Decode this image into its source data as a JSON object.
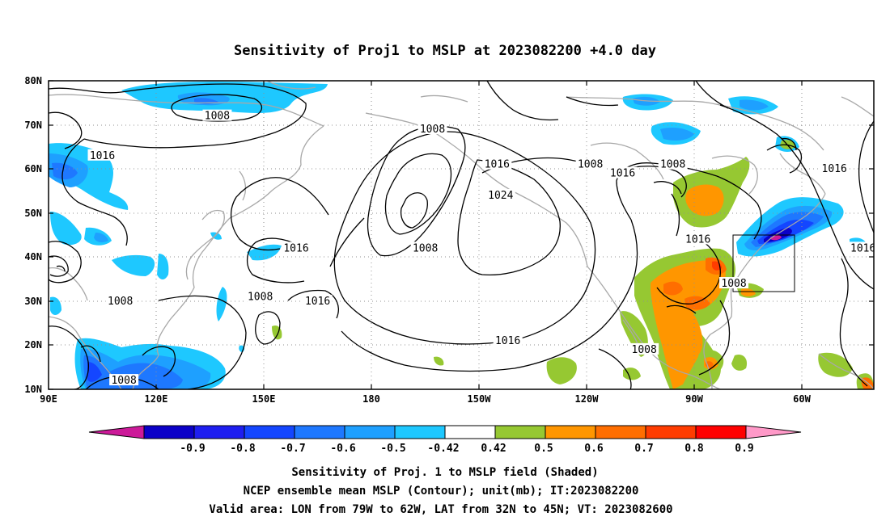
{
  "title": "Sensitivity of Proj1 to MSLP at 2023082200 +4.0 day",
  "map": {
    "lat_labels": [
      "80N",
      "70N",
      "60N",
      "50N",
      "40N",
      "30N",
      "20N",
      "10N"
    ],
    "lon_labels": [
      "90E",
      "120E",
      "150E",
      "180",
      "150W",
      "120W",
      "90W",
      "60W"
    ],
    "lon_range_deg": [
      90,
      320
    ],
    "lat_range_deg": [
      10,
      80
    ],
    "gridlines": "dotted",
    "coastlines_color": "#a8a8a8",
    "contour_color": "#000000",
    "contour_labels": [
      {
        "text": "1008",
        "lon": 137,
        "lat": 72
      },
      {
        "text": "1016",
        "lon": 105,
        "lat": 63
      },
      {
        "text": "1008",
        "lon": 197,
        "lat": 69
      },
      {
        "text": "1016",
        "lon": 215,
        "lat": 61
      },
      {
        "text": "1008",
        "lon": 241,
        "lat": 61
      },
      {
        "text": "1016",
        "lon": 250,
        "lat": 59
      },
      {
        "text": "1008",
        "lon": 264,
        "lat": 61
      },
      {
        "text": "1016",
        "lon": 309,
        "lat": 60
      },
      {
        "text": "1024",
        "lon": 216,
        "lat": 54
      },
      {
        "text": "1008",
        "lon": 195,
        "lat": 42
      },
      {
        "text": "1016",
        "lon": 159,
        "lat": 42
      },
      {
        "text": "1016",
        "lon": 271,
        "lat": 44
      },
      {
        "text": "1016",
        "lon": 317,
        "lat": 42
      },
      {
        "text": "1008",
        "lon": 281,
        "lat": 34
      },
      {
        "text": "1008",
        "lon": 110,
        "lat": 30
      },
      {
        "text": "1008",
        "lon": 149,
        "lat": 31
      },
      {
        "text": "1016",
        "lon": 165,
        "lat": 30
      },
      {
        "text": "1016",
        "lon": 218,
        "lat": 21
      },
      {
        "text": "1008",
        "lon": 256,
        "lat": 19
      },
      {
        "text": "1008",
        "lon": 111,
        "lat": 12
      }
    ],
    "valid_box": {
      "lon": [
        281,
        298
      ],
      "lat": [
        32,
        45
      ]
    }
  },
  "colorbar": {
    "labels": [
      "-0.9",
      "-0.8",
      "-0.7",
      "-0.6",
      "-0.5",
      "-0.42",
      "0.42",
      "0.5",
      "0.6",
      "0.7",
      "0.8",
      "0.9"
    ],
    "colors": [
      "#0b00c8",
      "#1e1ef0",
      "#1446ff",
      "#1e78ff",
      "#1ea0ff",
      "#1ec8ff",
      "#ffffff",
      "#96c832",
      "#ff9600",
      "#ff6e00",
      "#ff3c00",
      "#ff0000"
    ],
    "under_color": "#cc1a99",
    "over_color": "#ff99c8"
  },
  "caption": {
    "line1": "Sensitivity of Proj. 1 to MSLP field (Shaded)",
    "line2": "NCEP ensemble mean MSLP (Contour); unit(mb); IT:2023082200",
    "line3": "Valid area: LON from 79W to 62W, LAT from 32N to 45N; VT: 2023082600"
  }
}
